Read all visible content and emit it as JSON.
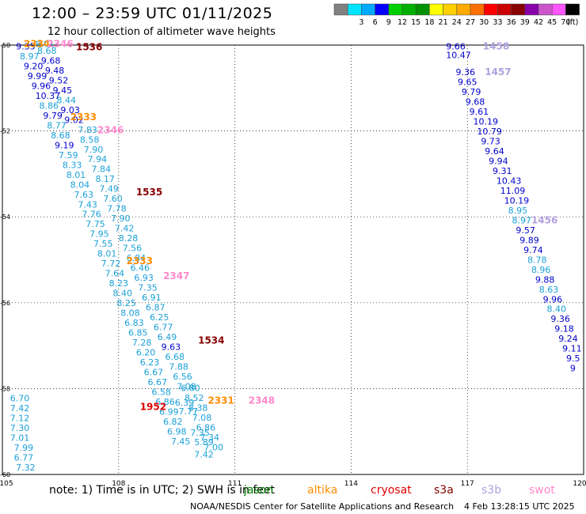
{
  "header": {
    "title": "12:00 – 23:59 UTC 01/11/2025",
    "subtitle": "12 hour collection of altimeter wave heights"
  },
  "legend": {
    "unit": "(ft)",
    "bins": [
      {
        "color": "#808080",
        "label": ""
      },
      {
        "color": "#00e5ff",
        "label": "3"
      },
      {
        "color": "#00aaff",
        "label": "6"
      },
      {
        "color": "#0000ff",
        "label": "9"
      },
      {
        "color": "#00d000",
        "label": "12"
      },
      {
        "color": "#00b000",
        "label": "15"
      },
      {
        "color": "#009000",
        "label": "18"
      },
      {
        "color": "#ffff00",
        "label": "21"
      },
      {
        "color": "#ffd000",
        "label": "24"
      },
      {
        "color": "#ffaa00",
        "label": "27"
      },
      {
        "color": "#ff7000",
        "label": "30"
      },
      {
        "color": "#ff0000",
        "label": "33"
      },
      {
        "color": "#cc0000",
        "label": "36"
      },
      {
        "color": "#880000",
        "label": "39"
      },
      {
        "color": "#8800aa",
        "label": "42"
      },
      {
        "color": "#cc55cc",
        "label": "45"
      },
      {
        "color": "#ff55ff",
        "label": "70"
      },
      {
        "color": "#000000",
        "label": ""
      }
    ]
  },
  "map": {
    "lon_range": [
      105,
      120
    ],
    "lat_range": [
      -60,
      -50
    ],
    "lon_ticks": [
      "105",
      "108",
      "111",
      "114",
      "117",
      "120"
    ],
    "lat_ticks": [
      "-50",
      "-52",
      "-54",
      "-56",
      "-58",
      "-60"
    ],
    "grid": true
  },
  "colors": {
    "low": "#1aa0d8",
    "mid": "#0000cc",
    "jason": "#008000",
    "altika": "#ff8c00",
    "cryosat": "#e00000",
    "s3a": "#880000",
    "s3b": "#b0a0e0",
    "swot": "#ff88cc"
  },
  "tracks": [
    {
      "values": [
        {
          "lon": 105.35,
          "lat": -50.1,
          "v": "9.35",
          "c": "mid"
        },
        {
          "lon": 105.45,
          "lat": -50.33,
          "v": "8.97",
          "c": "low"
        },
        {
          "lon": 105.55,
          "lat": -50.56,
          "v": "9.20",
          "c": "mid"
        },
        {
          "lon": 105.65,
          "lat": -50.79,
          "v": "9.99",
          "c": "mid"
        },
        {
          "lon": 105.75,
          "lat": -51.02,
          "v": "9.96",
          "c": "mid"
        },
        {
          "lon": 105.85,
          "lat": -51.25,
          "v": "10.37",
          "c": "mid"
        },
        {
          "lon": 105.95,
          "lat": -51.48,
          "v": "8.86",
          "c": "low"
        },
        {
          "lon": 106.05,
          "lat": -51.71,
          "v": "9.79",
          "c": "mid"
        },
        {
          "lon": 106.15,
          "lat": -51.94,
          "v": "8.77",
          "c": "low"
        },
        {
          "lon": 106.25,
          "lat": -52.17,
          "v": "8.68",
          "c": "low"
        },
        {
          "lon": 106.35,
          "lat": -52.4,
          "v": "9.19",
          "c": "mid"
        },
        {
          "lon": 106.45,
          "lat": -52.63,
          "v": "7.59",
          "c": "low"
        },
        {
          "lon": 106.55,
          "lat": -52.86,
          "v": "8.33",
          "c": "low"
        },
        {
          "lon": 106.65,
          "lat": -53.09,
          "v": "8.01",
          "c": "low"
        },
        {
          "lon": 106.75,
          "lat": -53.32,
          "v": "8.04",
          "c": "low"
        },
        {
          "lon": 106.85,
          "lat": -53.55,
          "v": "7.63",
          "c": "low"
        },
        {
          "lon": 106.95,
          "lat": -53.78,
          "v": "7.43",
          "c": "low"
        },
        {
          "lon": 107.05,
          "lat": -54.01,
          "v": "7.76",
          "c": "low"
        },
        {
          "lon": 107.15,
          "lat": -54.24,
          "v": "7.75",
          "c": "low"
        },
        {
          "lon": 107.25,
          "lat": -54.47,
          "v": "7.95",
          "c": "low"
        },
        {
          "lon": 107.35,
          "lat": -54.7,
          "v": "7.55",
          "c": "low"
        },
        {
          "lon": 107.45,
          "lat": -54.93,
          "v": "8.01",
          "c": "low"
        },
        {
          "lon": 107.55,
          "lat": -55.16,
          "v": "7.72",
          "c": "low"
        },
        {
          "lon": 107.65,
          "lat": -55.39,
          "v": "7.64",
          "c": "low"
        },
        {
          "lon": 107.75,
          "lat": -55.62,
          "v": "8.23",
          "c": "low"
        },
        {
          "lon": 107.85,
          "lat": -55.85,
          "v": "8.40",
          "c": "low"
        },
        {
          "lon": 107.95,
          "lat": -56.08,
          "v": "8.25",
          "c": "low"
        },
        {
          "lon": 108.05,
          "lat": -56.31,
          "v": "8.08",
          "c": "low"
        },
        {
          "lon": 108.15,
          "lat": -56.54,
          "v": "6.83",
          "c": "low"
        },
        {
          "lon": 108.25,
          "lat": -56.77,
          "v": "6.85",
          "c": "low"
        },
        {
          "lon": 108.35,
          "lat": -57.0,
          "v": "7.28",
          "c": "low"
        },
        {
          "lon": 108.45,
          "lat": -57.23,
          "v": "6.20",
          "c": "low"
        },
        {
          "lon": 108.55,
          "lat": -57.46,
          "v": "6.23",
          "c": "low"
        },
        {
          "lon": 108.65,
          "lat": -57.69,
          "v": "6.67",
          "c": "low"
        },
        {
          "lon": 108.75,
          "lat": -57.92,
          "v": "6.67",
          "c": "low"
        },
        {
          "lon": 108.85,
          "lat": -58.15,
          "v": "6.58",
          "c": "low"
        },
        {
          "lon": 108.95,
          "lat": -58.38,
          "v": "6.86",
          "c": "low"
        },
        {
          "lon": 109.05,
          "lat": -58.61,
          "v": "6.99",
          "c": "low"
        },
        {
          "lon": 109.15,
          "lat": -58.84,
          "v": "6.82",
          "c": "low"
        },
        {
          "lon": 109.25,
          "lat": -59.07,
          "v": "6.98",
          "c": "low"
        },
        {
          "lon": 109.35,
          "lat": -59.3,
          "v": "7.45",
          "c": "low"
        }
      ]
    },
    {
      "values": [
        {
          "lon": 105.85,
          "lat": -50.05,
          "v": "8.91",
          "c": "low"
        },
        {
          "lon": 105.9,
          "lat": -50.2,
          "v": "8.68",
          "c": "low"
        },
        {
          "lon": 106.0,
          "lat": -50.43,
          "v": "9.68",
          "c": "mid"
        },
        {
          "lon": 106.1,
          "lat": -50.66,
          "v": "9.48",
          "c": "mid"
        },
        {
          "lon": 106.2,
          "lat": -50.89,
          "v": "9.52",
          "c": "mid"
        },
        {
          "lon": 106.3,
          "lat": -51.12,
          "v": "9.45",
          "c": "mid"
        },
        {
          "lon": 106.4,
          "lat": -51.35,
          "v": "8.44",
          "c": "low"
        },
        {
          "lon": 106.5,
          "lat": -51.58,
          "v": "9.03",
          "c": "mid"
        },
        {
          "lon": 106.6,
          "lat": -51.81,
          "v": "9.02",
          "c": "mid"
        },
        {
          "lon": 106.95,
          "lat": -52.04,
          "v": "7.83",
          "c": "low"
        },
        {
          "lon": 107.0,
          "lat": -52.27,
          "v": "8.58",
          "c": "low"
        },
        {
          "lon": 107.1,
          "lat": -52.5,
          "v": "7.90",
          "c": "low"
        },
        {
          "lon": 107.2,
          "lat": -52.73,
          "v": "7.94",
          "c": "low"
        },
        {
          "lon": 107.3,
          "lat": -52.96,
          "v": "7.84",
          "c": "low"
        },
        {
          "lon": 107.4,
          "lat": -53.19,
          "v": "8.17",
          "c": "low"
        },
        {
          "lon": 107.5,
          "lat": -53.42,
          "v": "7.49",
          "c": "low"
        },
        {
          "lon": 107.6,
          "lat": -53.65,
          "v": "7.60",
          "c": "low"
        },
        {
          "lon": 107.7,
          "lat": -53.88,
          "v": "7.78",
          "c": "low"
        },
        {
          "lon": 107.8,
          "lat": -54.11,
          "v": "7.90",
          "c": "low"
        },
        {
          "lon": 107.9,
          "lat": -54.34,
          "v": "7.42",
          "c": "low"
        },
        {
          "lon": 108.0,
          "lat": -54.57,
          "v": "8.28",
          "c": "low"
        },
        {
          "lon": 108.1,
          "lat": -54.8,
          "v": "7.56",
          "c": "low"
        },
        {
          "lon": 108.2,
          "lat": -55.03,
          "v": "6.84",
          "c": "low"
        },
        {
          "lon": 108.3,
          "lat": -55.26,
          "v": "6.46",
          "c": "low"
        },
        {
          "lon": 108.4,
          "lat": -55.49,
          "v": "6.93",
          "c": "low"
        },
        {
          "lon": 108.5,
          "lat": -55.72,
          "v": "7.35",
          "c": "low"
        },
        {
          "lon": 108.6,
          "lat": -55.95,
          "v": "6.91",
          "c": "low"
        },
        {
          "lon": 108.7,
          "lat": -56.18,
          "v": "6.87",
          "c": "low"
        },
        {
          "lon": 108.8,
          "lat": -56.41,
          "v": "6.25",
          "c": "low"
        },
        {
          "lon": 108.9,
          "lat": -56.64,
          "v": "6.77",
          "c": "low"
        },
        {
          "lon": 109.0,
          "lat": -56.87,
          "v": "6.49",
          "c": "low"
        },
        {
          "lon": 109.1,
          "lat": -57.1,
          "v": "9.63",
          "c": "mid"
        },
        {
          "lon": 109.2,
          "lat": -57.33,
          "v": "6.68",
          "c": "low"
        },
        {
          "lon": 109.3,
          "lat": -57.56,
          "v": "7.88",
          "c": "low"
        },
        {
          "lon": 109.4,
          "lat": -57.79,
          "v": "6.56",
          "c": "low"
        },
        {
          "lon": 109.5,
          "lat": -58.02,
          "v": "7.08",
          "c": "low"
        }
      ]
    },
    {
      "values": [
        {
          "lon": 109.6,
          "lat": -58.06,
          "v": "6.80",
          "c": "low"
        },
        {
          "lon": 109.7,
          "lat": -58.29,
          "v": "8.52",
          "c": "low"
        },
        {
          "lon": 109.8,
          "lat": -58.52,
          "v": "8.38",
          "c": "low"
        },
        {
          "lon": 109.9,
          "lat": -58.75,
          "v": "7.08",
          "c": "low"
        },
        {
          "lon": 110.0,
          "lat": -58.98,
          "v": "6.86",
          "c": "low"
        },
        {
          "lon": 110.1,
          "lat": -59.21,
          "v": "7.34",
          "c": "low"
        },
        {
          "lon": 110.2,
          "lat": -59.44,
          "v": "7.00",
          "c": "low"
        },
        {
          "lon": 109.85,
          "lat": -59.1,
          "v": "7.35",
          "c": "low"
        },
        {
          "lon": 109.95,
          "lat": -59.32,
          "v": "5.89",
          "c": "low"
        },
        {
          "lon": 109.95,
          "lat": -59.6,
          "v": "7.42",
          "c": "low"
        },
        {
          "lon": 109.55,
          "lat": -58.6,
          "v": "7.77",
          "c": "low"
        },
        {
          "lon": 109.45,
          "lat": -58.4,
          "v": "6.39",
          "c": "low"
        }
      ]
    },
    {
      "values": [
        {
          "lon": 105.2,
          "lat": -58.3,
          "v": "6.70",
          "c": "low"
        },
        {
          "lon": 105.2,
          "lat": -58.53,
          "v": "7.42",
          "c": "low"
        },
        {
          "lon": 105.2,
          "lat": -58.76,
          "v": "7.12",
          "c": "low"
        },
        {
          "lon": 105.2,
          "lat": -58.99,
          "v": "7.30",
          "c": "low"
        },
        {
          "lon": 105.2,
          "lat": -59.22,
          "v": "7.01",
          "c": "low"
        },
        {
          "lon": 105.3,
          "lat": -59.45,
          "v": "7.99",
          "c": "low"
        },
        {
          "lon": 105.3,
          "lat": -59.68,
          "v": "6.77",
          "c": "low"
        },
        {
          "lon": 105.35,
          "lat": -59.91,
          "v": "7.32",
          "c": "low"
        }
      ]
    },
    {
      "values": [
        {
          "lon": 116.45,
          "lat": -50.1,
          "v": "9.66",
          "c": "mid"
        },
        {
          "lon": 116.45,
          "lat": -50.3,
          "v": "10.47",
          "c": "mid"
        },
        {
          "lon": 116.7,
          "lat": -50.7,
          "v": "9.36",
          "c": "mid"
        },
        {
          "lon": 116.75,
          "lat": -50.93,
          "v": "9.65",
          "c": "mid"
        },
        {
          "lon": 116.85,
          "lat": -51.16,
          "v": "9.79",
          "c": "mid"
        },
        {
          "lon": 116.95,
          "lat": -51.39,
          "v": "9.68",
          "c": "mid"
        },
        {
          "lon": 117.05,
          "lat": -51.62,
          "v": "9.61",
          "c": "mid"
        },
        {
          "lon": 117.15,
          "lat": -51.85,
          "v": "10.19",
          "c": "mid"
        },
        {
          "lon": 117.25,
          "lat": -52.08,
          "v": "10.79",
          "c": "mid"
        },
        {
          "lon": 117.35,
          "lat": -52.31,
          "v": "9.73",
          "c": "mid"
        },
        {
          "lon": 117.45,
          "lat": -52.54,
          "v": "9.64",
          "c": "mid"
        },
        {
          "lon": 117.55,
          "lat": -52.77,
          "v": "9.94",
          "c": "mid"
        },
        {
          "lon": 117.65,
          "lat": -53.0,
          "v": "9.31",
          "c": "mid"
        },
        {
          "lon": 117.75,
          "lat": -53.23,
          "v": "10.43",
          "c": "mid"
        },
        {
          "lon": 117.85,
          "lat": -53.46,
          "v": "11.09",
          "c": "mid"
        },
        {
          "lon": 117.95,
          "lat": -53.69,
          "v": "10.19",
          "c": "mid"
        },
        {
          "lon": 118.05,
          "lat": -53.92,
          "v": "8.95",
          "c": "low"
        },
        {
          "lon": 118.15,
          "lat": -54.15,
          "v": "8.97",
          "c": "low"
        },
        {
          "lon": 118.25,
          "lat": -54.38,
          "v": "9.57",
          "c": "mid"
        },
        {
          "lon": 118.35,
          "lat": -54.61,
          "v": "9.89",
          "c": "mid"
        },
        {
          "lon": 118.45,
          "lat": -54.84,
          "v": "9.74",
          "c": "mid"
        },
        {
          "lon": 118.55,
          "lat": -55.07,
          "v": "8.78",
          "c": "low"
        },
        {
          "lon": 118.65,
          "lat": -55.3,
          "v": "8.96",
          "c": "low"
        },
        {
          "lon": 118.75,
          "lat": -55.53,
          "v": "9.88",
          "c": "mid"
        },
        {
          "lon": 118.85,
          "lat": -55.76,
          "v": "8.63",
          "c": "low"
        },
        {
          "lon": 118.95,
          "lat": -55.99,
          "v": "9.96",
          "c": "mid"
        },
        {
          "lon": 119.05,
          "lat": -56.22,
          "v": "8.40",
          "c": "low"
        },
        {
          "lon": 119.15,
          "lat": -56.45,
          "v": "9.36",
          "c": "mid"
        },
        {
          "lon": 119.25,
          "lat": -56.68,
          "v": "9.18",
          "c": "mid"
        },
        {
          "lon": 119.35,
          "lat": -56.91,
          "v": "9.24",
          "c": "mid"
        },
        {
          "lon": 119.45,
          "lat": -57.14,
          "v": "9.11",
          "c": "mid"
        },
        {
          "lon": 119.55,
          "lat": -57.37,
          "v": "9.5",
          "c": "mid"
        },
        {
          "lon": 119.65,
          "lat": -57.6,
          "v": "9",
          "c": "mid"
        }
      ]
    }
  ],
  "pass_labels": [
    {
      "lon": 105.55,
      "lat": -50.05,
      "v": "2334",
      "c": "altika"
    },
    {
      "lon": 106.15,
      "lat": -50.05,
      "v": "2346",
      "c": "swot"
    },
    {
      "lon": 106.9,
      "lat": -50.12,
      "v": "1536",
      "c": "s3a"
    },
    {
      "lon": 106.75,
      "lat": -51.75,
      "v": "2333",
      "c": "altika"
    },
    {
      "lon": 107.45,
      "lat": -52.05,
      "v": "2346",
      "c": "swot"
    },
    {
      "lon": 108.45,
      "lat": -53.5,
      "v": "1535",
      "c": "s3a"
    },
    {
      "lon": 108.2,
      "lat": -55.1,
      "v": "2333",
      "c": "altika"
    },
    {
      "lon": 109.15,
      "lat": -55.45,
      "v": "2347",
      "c": "swot"
    },
    {
      "lon": 110.05,
      "lat": -56.95,
      "v": "1534",
      "c": "s3a"
    },
    {
      "lon": 108.55,
      "lat": -58.5,
      "v": "1952",
      "c": "cryosat"
    },
    {
      "lon": 110.3,
      "lat": -58.35,
      "v": "2331",
      "c": "altika"
    },
    {
      "lon": 111.35,
      "lat": -58.35,
      "v": "2348",
      "c": "swot"
    },
    {
      "lon": 117.4,
      "lat": -50.1,
      "v": "1458",
      "c": "s3b"
    },
    {
      "lon": 117.45,
      "lat": -50.7,
      "v": "1457",
      "c": "s3b"
    },
    {
      "lon": 118.65,
      "lat": -54.15,
      "v": "1456",
      "c": "s3b"
    }
  ],
  "notes": {
    "prefix": "note:  1) Time is in UTC; 2) SWH is in feet",
    "sats": [
      {
        "label": "jason",
        "c": "jason"
      },
      {
        "label": "altika",
        "c": "altika"
      },
      {
        "label": "cryosat",
        "c": "cryosat"
      },
      {
        "label": "s3a",
        "c": "s3a"
      },
      {
        "label": "s3b",
        "c": "s3b"
      },
      {
        "label": "swot",
        "c": "swot"
      }
    ]
  },
  "footer": {
    "credit": "NOAA/NESDIS Center for Satellite Applications and Research",
    "timestamp": "4 Feb 13:28:15 UTC 2025"
  }
}
